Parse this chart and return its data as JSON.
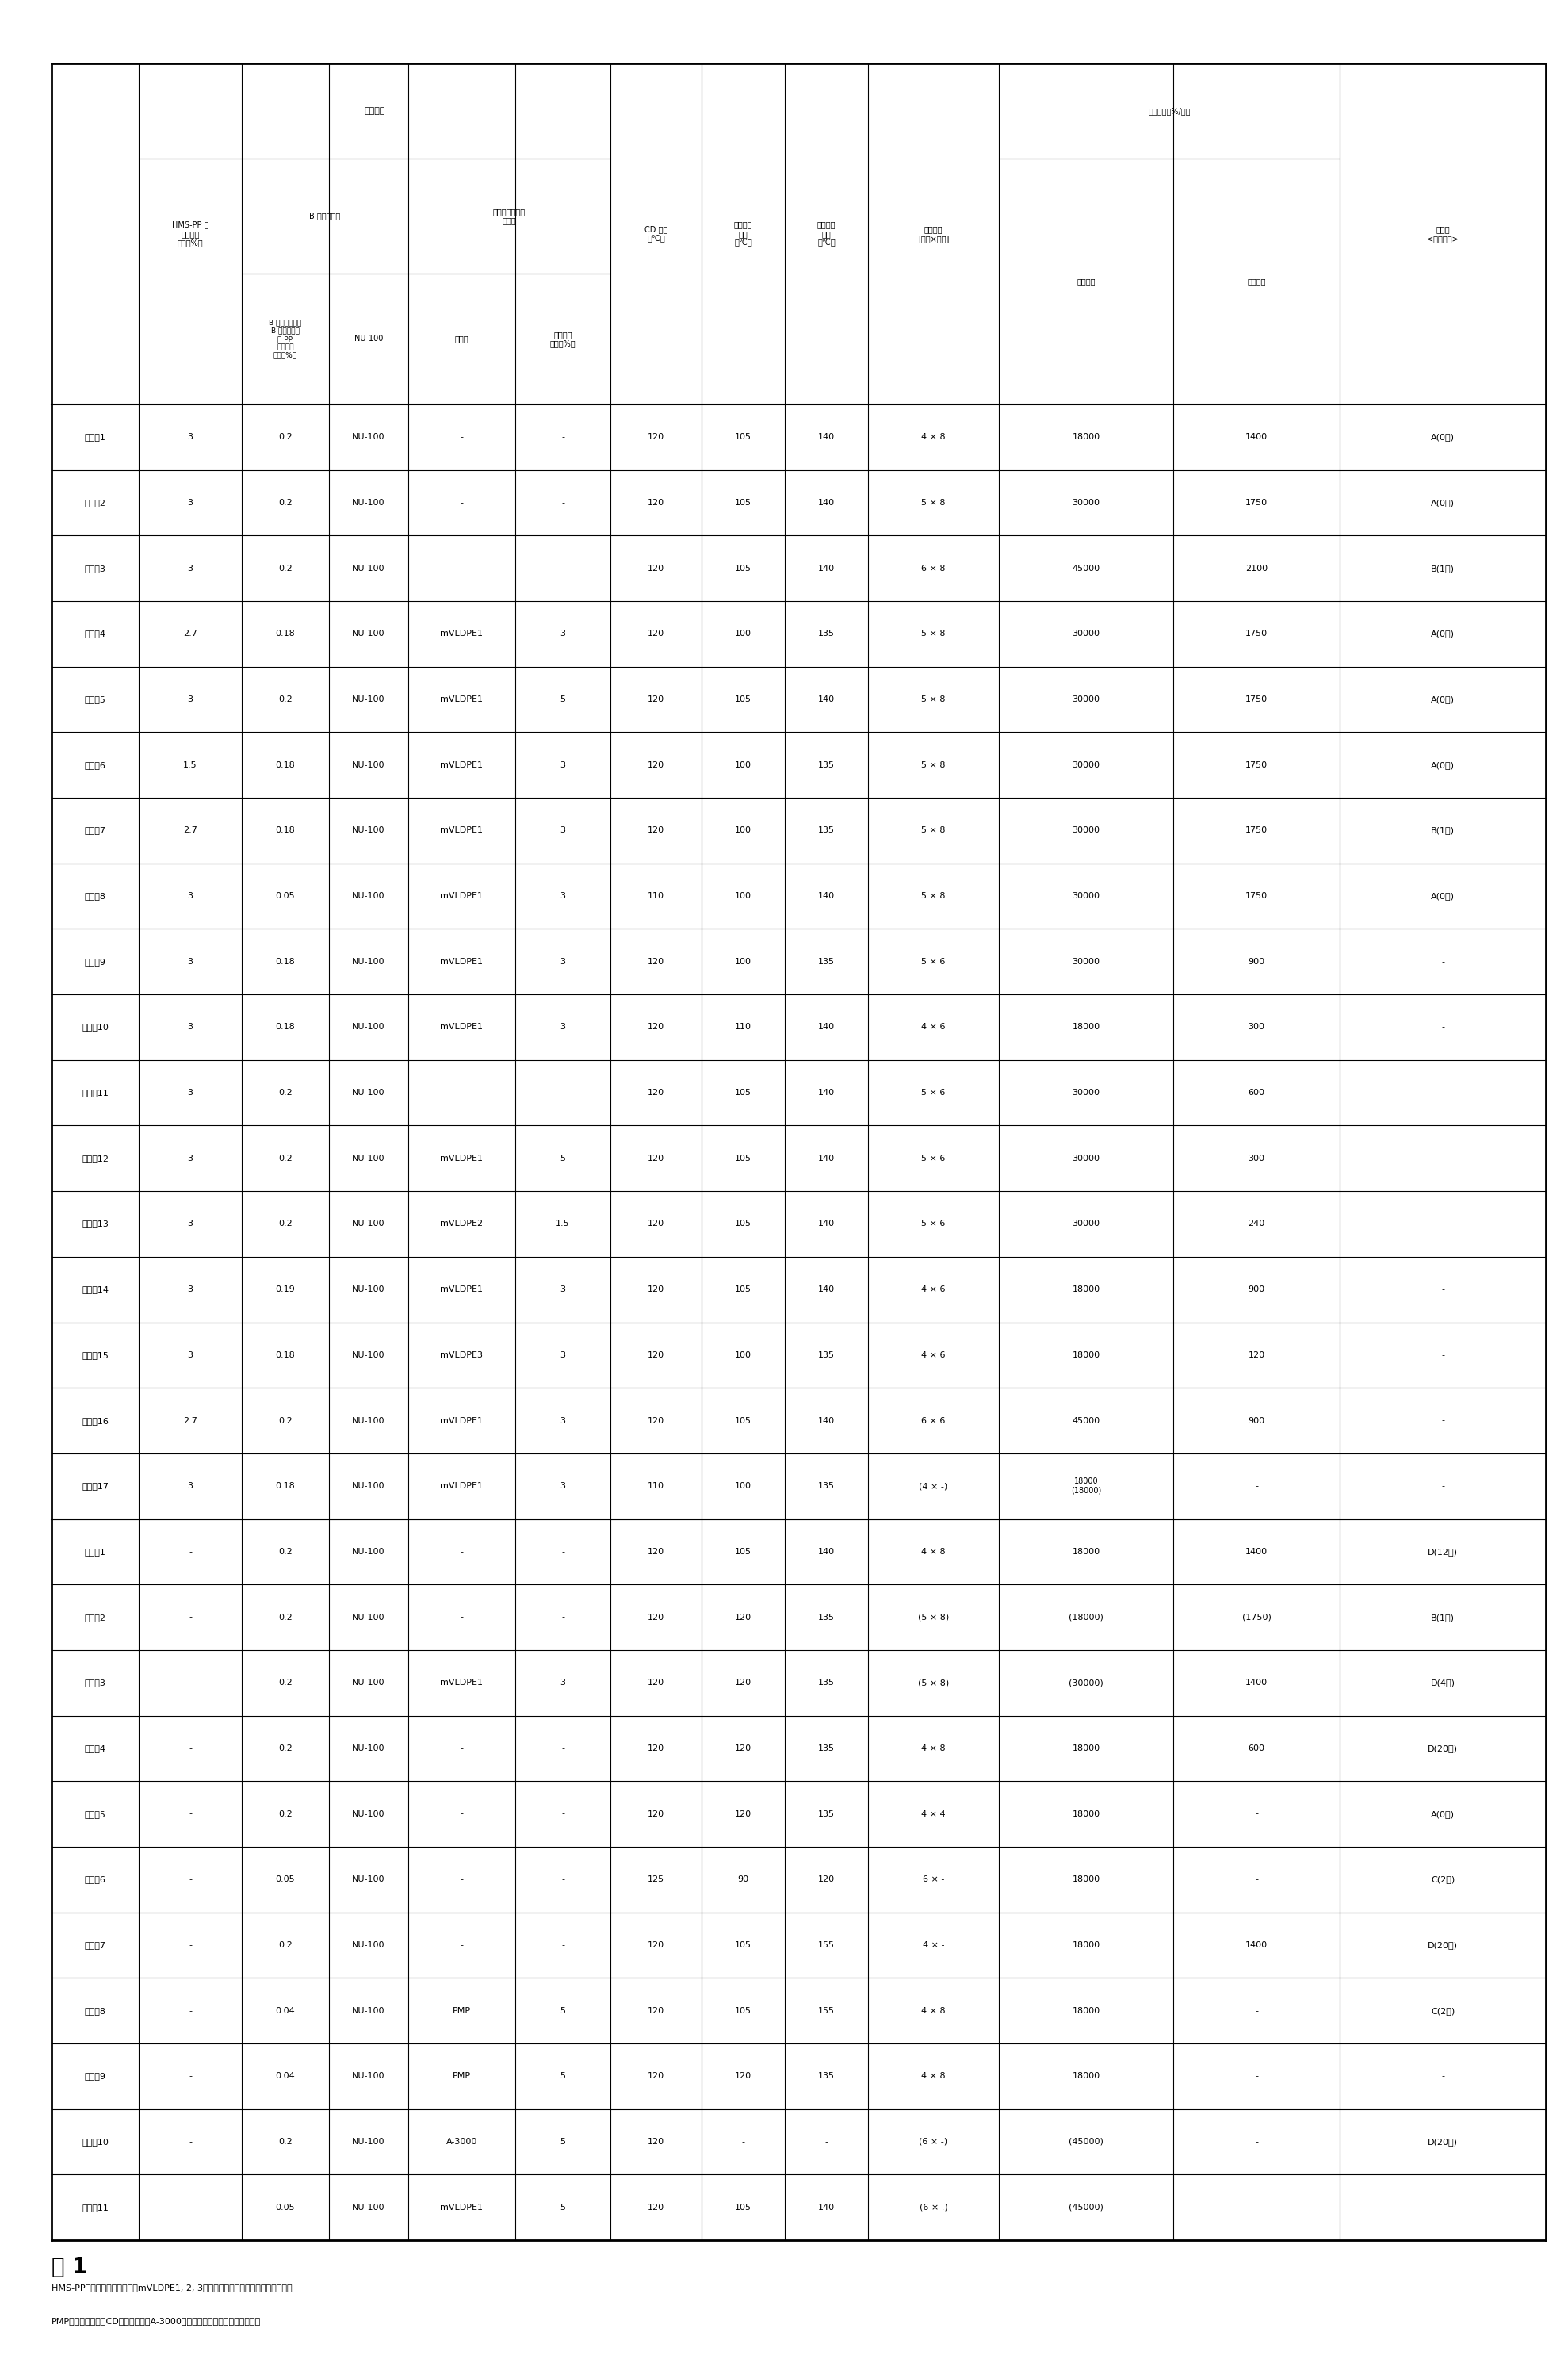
{
  "title": "表 1",
  "row_labels": [
    "実施例1",
    "実施例2",
    "実施例3",
    "実施例4",
    "実施例5",
    "実施例6",
    "実施例7",
    "実施例8",
    "実施例9",
    "実施例10",
    "実施例11",
    "実施例12",
    "実施例13",
    "実施例14",
    "実施例15",
    "実施例16",
    "実施例17",
    "比較例1",
    "比較例2",
    "比較例3",
    "比較例4",
    "比較例5",
    "比較例6",
    "比較例7",
    "比較例8",
    "比較例9",
    "比較例10",
    "比較例11"
  ],
  "hms_pp": [
    "3",
    "3",
    "3",
    "2.7",
    "3",
    "1.5",
    "2.7",
    "3",
    "3",
    "3",
    "3",
    "3",
    "3",
    "3",
    "3",
    "2.7",
    "3",
    "-",
    "-",
    "-",
    "-",
    "-",
    "-",
    "-",
    "-",
    "-",
    "-",
    "-"
  ],
  "nu100_ratio": [
    "0.2",
    "0.2",
    "0.2",
    "0.18",
    "0.2",
    "0.18",
    "0.18",
    "0.05",
    "0.18",
    "0.18",
    "0.2",
    "0.2",
    "0.2",
    "0.19",
    "0.18",
    "0.2",
    "0.18",
    "0.2",
    "0.2",
    "0.2",
    "0.2",
    "0.2",
    "0.05",
    "0.2",
    "0.04",
    "0.04",
    "0.2",
    "0.05"
  ],
  "nu100": [
    "NU-100",
    "NU-100",
    "NU-100",
    "NU-100",
    "NU-100",
    "NU-100",
    "NU-100",
    "NU-100",
    "NU-100",
    "NU-100",
    "NU-100",
    "NU-100",
    "NU-100",
    "NU-100",
    "NU-100",
    "NU-100",
    "NU-100",
    "NU-100",
    "NU-100",
    "NU-100",
    "NU-100",
    "NU-100",
    "NU-100",
    "NU-100",
    "NU-100",
    "NU-100",
    "NU-100",
    "NU-100"
  ],
  "resin_name": [
    "-",
    "-",
    "-",
    "mVLDPE1",
    "mVLDPE1",
    "mVLDPE1",
    "mVLDPE1",
    "mVLDPE1",
    "mVLDPE1",
    "mVLDPE1",
    "-",
    "mVLDPE1",
    "mVLDPE2",
    "mVLDPE1",
    "mVLDPE3",
    "mVLDPE1",
    "mVLDPE1",
    "-",
    "-",
    "mVLDPE1",
    "-",
    "-",
    "-",
    "-",
    "PMP",
    "PMP",
    "A-3000",
    "mVLDPE1"
  ],
  "resin_ratio": [
    "-",
    "-",
    "-",
    "3",
    "5",
    "3",
    "3",
    "3",
    "3",
    "3",
    "-",
    "5",
    "1.5",
    "3",
    "3",
    "3",
    "3",
    "-",
    "-",
    "3",
    "-",
    "-",
    "-",
    "-",
    "5",
    "5",
    "5",
    "5"
  ],
  "cd_temp": [
    "120",
    "120",
    "120",
    "120",
    "120",
    "120",
    "120",
    "110",
    "120",
    "120",
    "120",
    "120",
    "120",
    "120",
    "120",
    "120",
    "110",
    "120",
    "120",
    "120",
    "120",
    "120",
    "125",
    "120",
    "120",
    "120",
    "120",
    "120"
  ],
  "md_temp": [
    "105",
    "105",
    "105",
    "100",
    "105",
    "100",
    "100",
    "100",
    "100",
    "110",
    "105",
    "105",
    "105",
    "105",
    "100",
    "105",
    "100",
    "105",
    "120",
    "120",
    "120",
    "120",
    "90",
    "105",
    "105",
    "120",
    "-",
    "105"
  ],
  "td_temp": [
    "140",
    "140",
    "140",
    "135",
    "140",
    "135",
    "135",
    "140",
    "135",
    "140",
    "140",
    "140",
    "140",
    "140",
    "135",
    "140",
    "135",
    "140",
    "135",
    "135",
    "135",
    "135",
    "120",
    "155",
    "155",
    "135",
    "-",
    "140"
  ],
  "stretch_ratio": [
    "4 × 8",
    "5 × 8",
    "6 × 8",
    "5 × 8",
    "5 × 8",
    "5 × 8",
    "5 × 8",
    "5 × 8",
    "5 × 6",
    "4 × 6",
    "5 × 6",
    "5 × 6",
    "5 × 6",
    "4 × 6",
    "4 × 6",
    "6 × 6",
    "(4 × -)",
    "4 × 8",
    "(5 × 8)",
    "(5 × 8)",
    "4 × 8",
    "4 × 4",
    "6 × -",
    "4 × -",
    "4 × 8",
    "4 × 8",
    "(6 × -)",
    "(6 × .)"
  ],
  "md_speed": [
    "18000",
    "30000",
    "45000",
    "30000",
    "30000",
    "30000",
    "30000",
    "30000",
    "30000",
    "18000",
    "30000",
    "30000",
    "30000",
    "18000",
    "18000",
    "45000",
    "18000\n(18000)",
    "18000",
    "(18000)",
    "(30000)",
    "18000",
    "18000",
    "18000",
    "18000",
    "18000",
    "18000",
    "(45000)",
    "(45000)"
  ],
  "td_speed": [
    "1400",
    "1750",
    "2100",
    "1750",
    "1750",
    "1750",
    "1750",
    "1750",
    "900",
    "300",
    "600",
    "300",
    "240",
    "900",
    "120",
    "900",
    "-",
    "1400",
    "(1750)",
    "1400",
    "600",
    "-",
    "-",
    "1400",
    "-",
    "-",
    "-",
    "-"
  ],
  "film_quality": [
    "A(0次)",
    "A(0次)",
    "B(1次)",
    "A(0次)",
    "A(0次)",
    "A(0次)",
    "B(1次)",
    "A(0次)",
    "-",
    "-",
    "-",
    "-",
    "-",
    "-",
    "-",
    "-",
    "-",
    "D(12次)",
    "B(1次)",
    "D(4次)",
    "D(20次)",
    "A(0次)",
    "C(2次)",
    "D(20次)",
    "C(2次)",
    "-",
    "D(20次)",
    "-"
  ],
  "notes": [
    "HMS-PP：高熔融张力聚丙烯，mVLDPE1, 2, 3：含金属催化剂催化的超低密度聚乙烯",
    "PMP：聚甲基戊烯，CD：流延转鼓，A-3000：丙烯酸改性高分子量聚四氟乙烯"
  ]
}
